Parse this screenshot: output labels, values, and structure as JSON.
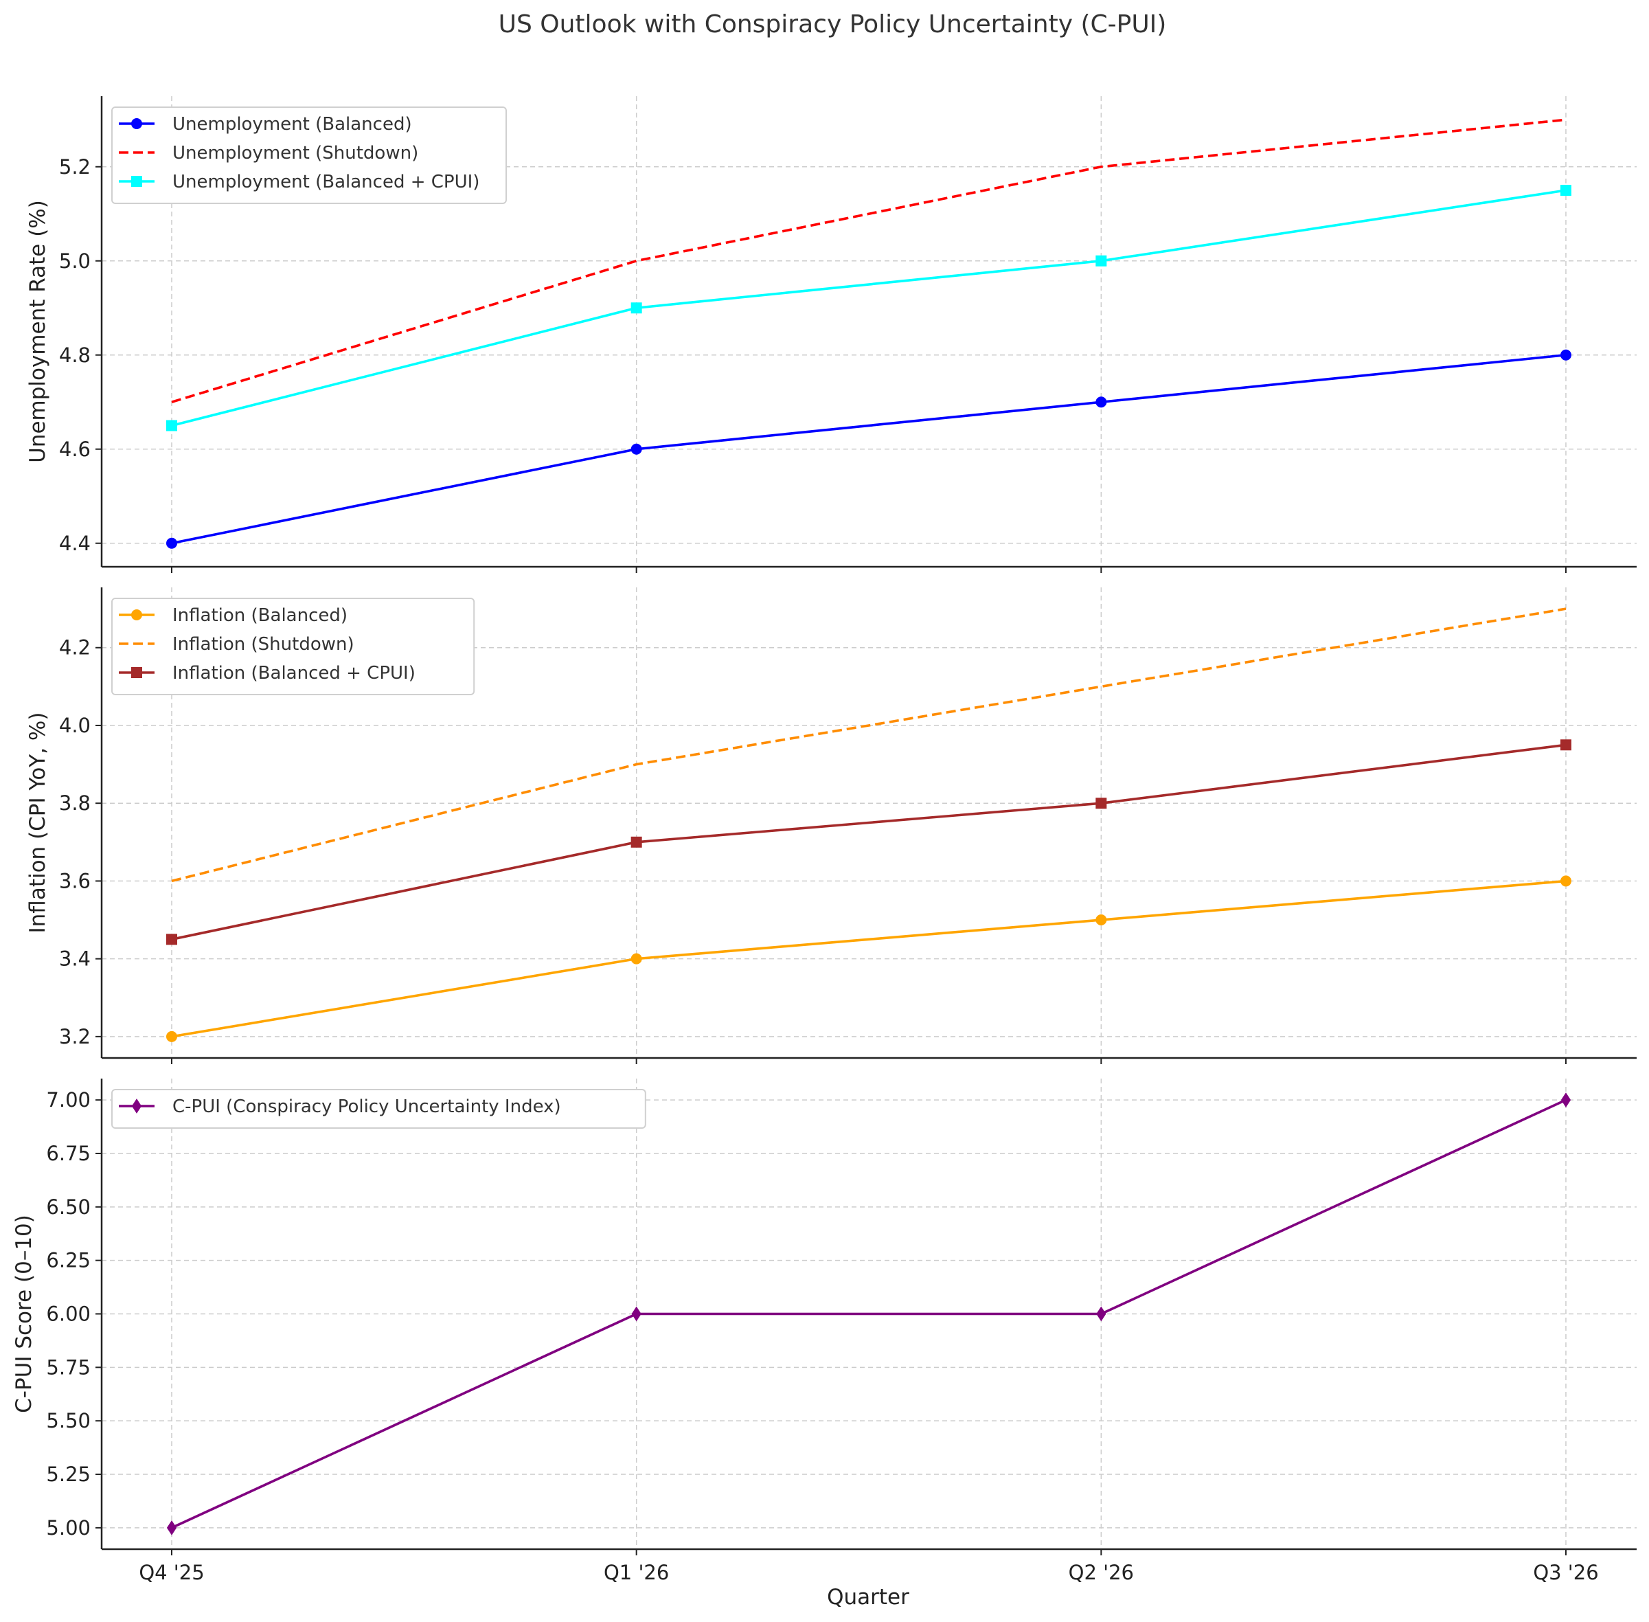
{
  "chart_data": {
    "type": "line",
    "title": "US Outlook with Conspiracy Policy Uncertainty (C-PUI)",
    "xlabel": "Quarter",
    "categories": [
      "Q4 '25",
      "Q1 '26",
      "Q2 '26",
      "Q3 '26"
    ],
    "grid": true,
    "panels": [
      {
        "ylabel": "Unemployment Rate (%)",
        "ylim": [
          4.35,
          5.35
        ],
        "yticks": [
          "4.4",
          "4.6",
          "4.8",
          "5.0",
          "5.2"
        ],
        "legend_position": "upper left",
        "series": [
          {
            "name": "Unemployment (Balanced)",
            "values": [
              4.4,
              4.6,
              4.7,
              4.8
            ],
            "color": "#0000ff",
            "line": "solid",
            "marker": "circle"
          },
          {
            "name": "Unemployment (Shutdown)",
            "values": [
              4.7,
              5.0,
              5.2,
              5.3
            ],
            "color": "#ff0000",
            "line": "dashed",
            "marker": "none"
          },
          {
            "name": "Unemployment (Balanced + CPUI)",
            "values": [
              4.65,
              4.9,
              5.0,
              5.15
            ],
            "color": "#00ffff",
            "line": "solid",
            "marker": "square"
          }
        ]
      },
      {
        "ylabel": "Inflation (CPI YoY, %)",
        "ylim": [
          3.145,
          4.355
        ],
        "yticks": [
          "3.2",
          "3.4",
          "3.6",
          "3.8",
          "4.0",
          "4.2"
        ],
        "legend_position": "upper left",
        "series": [
          {
            "name": "Inflation (Balanced)",
            "values": [
              3.2,
              3.4,
              3.5,
              3.6
            ],
            "color": "#ffa500",
            "line": "solid",
            "marker": "circle"
          },
          {
            "name": "Inflation (Shutdown)",
            "values": [
              3.6,
              3.9,
              4.1,
              4.3
            ],
            "color": "#ff8c00",
            "line": "dashed",
            "marker": "none"
          },
          {
            "name": "Inflation (Balanced + CPUI)",
            "values": [
              3.45,
              3.7,
              3.8,
              3.95
            ],
            "color": "#a52a2a",
            "line": "solid",
            "marker": "square"
          }
        ]
      },
      {
        "ylabel": "C-PUI Score (0–10)",
        "ylim": [
          4.9,
          7.1
        ],
        "yticks": [
          "5.00",
          "5.25",
          "5.50",
          "5.75",
          "6.00",
          "6.25",
          "6.50",
          "6.75",
          "7.00"
        ],
        "legend_position": "upper left",
        "series": [
          {
            "name": "C-PUI (Conspiracy Policy Uncertainty Index)",
            "values": [
              5.0,
              6.0,
              6.0,
              7.0
            ],
            "color": "#800080",
            "line": "solid",
            "marker": "diamond"
          }
        ]
      }
    ]
  }
}
